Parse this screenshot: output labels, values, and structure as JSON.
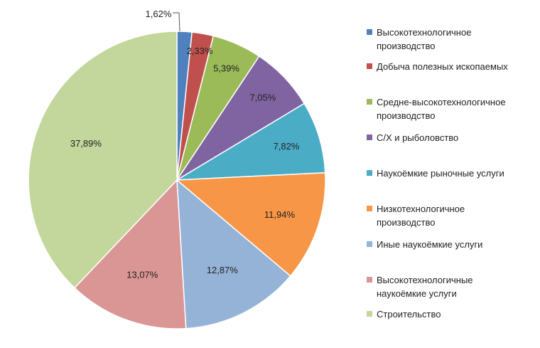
{
  "chart_data": {
    "type": "pie",
    "slices": [
      {
        "label": "Высокотехнологичное производство",
        "value": 1.62,
        "display": "1,62%",
        "color": "#4f81bd"
      },
      {
        "label": "Добыча полезных ископаемых",
        "value": 2.33,
        "display": "2,33%",
        "color": "#c0504d"
      },
      {
        "label": "Средне-высокотехнологичное производство",
        "value": 5.39,
        "display": "5,39%",
        "color": "#9bbb59"
      },
      {
        "label": "С/Х и рыболовство",
        "value": 7.05,
        "display": "7,05%",
        "color": "#8064a2"
      },
      {
        "label": "Наукоёмкие рыночные услуги",
        "value": 7.82,
        "display": "7,82%",
        "color": "#4bacc6"
      },
      {
        "label": "Низкотехнологичное производство",
        "value": 11.94,
        "display": "11,94%",
        "color": "#f79646"
      },
      {
        "label": "Иные наукоёмкие услуги",
        "value": 12.87,
        "display": "12,87%",
        "color": "#95b3d7"
      },
      {
        "label": "Высокотехнологичные наукоёмкие услуги",
        "value": 13.07,
        "display": "13,07%",
        "color": "#d99694"
      },
      {
        "label": "Строительство",
        "value": 37.89,
        "display": "37,89%",
        "color": "#c3d69b"
      }
    ],
    "legend": {
      "position": "right",
      "items": [
        {
          "lines": [
            "Высокотехнологичное",
            "производство"
          ],
          "color": "#4f81bd"
        },
        {
          "lines": [
            "Добыча полезных ископаемых"
          ],
          "color": "#c0504d"
        },
        {
          "lines": [
            "Средне-высокотехнологичное",
            "производство"
          ],
          "color": "#9bbb59"
        },
        {
          "lines": [
            "С/Х и рыболовство"
          ],
          "color": "#8064a2"
        },
        {
          "lines": [
            "Наукоёмкие  рыночные услуги"
          ],
          "color": "#4bacc6"
        },
        {
          "lines": [
            "Низкотехнологичное",
            "производство"
          ],
          "color": "#f79646"
        },
        {
          "lines": [
            "Иные наукоёмкие  услуги"
          ],
          "color": "#95b3d7"
        },
        {
          "lines": [
            "Высокотехнологичные",
            "наукоёмкие услуги"
          ],
          "color": "#d99694"
        },
        {
          "lines": [
            "Строительство"
          ],
          "color": "#c3d69b"
        }
      ]
    }
  }
}
